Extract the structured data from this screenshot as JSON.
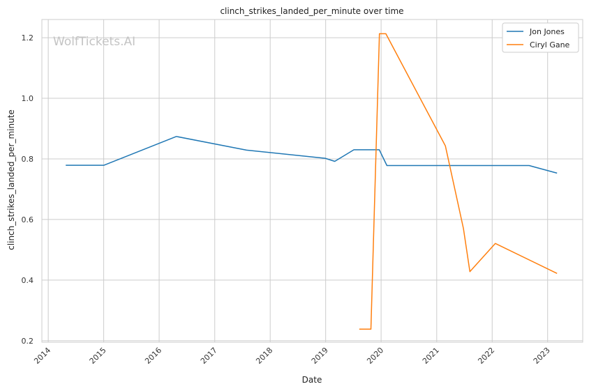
{
  "watermark": "WolfTickets.AI",
  "chart_data": {
    "type": "line",
    "title": "clinch_strikes_landed_per_minute over time",
    "xlabel": "Date",
    "ylabel": "clinch_strikes_landed_per_minute",
    "x_ticks": [
      "2014",
      "2015",
      "2016",
      "2017",
      "2018",
      "2019",
      "2020",
      "2021",
      "2022",
      "2023"
    ],
    "y_ticks": [
      "0.2",
      "0.4",
      "0.6",
      "0.8",
      "1.0",
      "1.2"
    ],
    "xlim": [
      "2013-11-20",
      "2023-08-20"
    ],
    "ylim": [
      0.195,
      1.26
    ],
    "grid": true,
    "legend_position": "top-right",
    "series": [
      {
        "name": "Jon Jones",
        "color": "#1f77b4",
        "points": [
          {
            "x": "2014-04-26",
            "y": 0.779
          },
          {
            "x": "2015-01-03",
            "y": 0.779
          },
          {
            "x": "2016-04-23",
            "y": 0.874
          },
          {
            "x": "2017-07-29",
            "y": 0.829
          },
          {
            "x": "2018-12-29",
            "y": 0.802
          },
          {
            "x": "2019-03-02",
            "y": 0.792
          },
          {
            "x": "2019-07-06",
            "y": 0.83
          },
          {
            "x": "2019-12-20",
            "y": 0.83
          },
          {
            "x": "2020-02-08",
            "y": 0.778
          },
          {
            "x": "2022-09-01",
            "y": 0.778
          },
          {
            "x": "2023-03-04",
            "y": 0.753
          }
        ]
      },
      {
        "name": "Ciryl Gane",
        "color": "#ff7f0e",
        "points": [
          {
            "x": "2019-08-10",
            "y": 0.238
          },
          {
            "x": "2019-10-26",
            "y": 0.238
          },
          {
            "x": "2019-12-21",
            "y": 1.213
          },
          {
            "x": "2020-02-01",
            "y": 1.213
          },
          {
            "x": "2021-02-27",
            "y": 0.843
          },
          {
            "x": "2021-06-26",
            "y": 0.57
          },
          {
            "x": "2021-08-07",
            "y": 0.428
          },
          {
            "x": "2022-01-22",
            "y": 0.521
          },
          {
            "x": "2023-03-04",
            "y": 0.422
          }
        ]
      }
    ]
  }
}
